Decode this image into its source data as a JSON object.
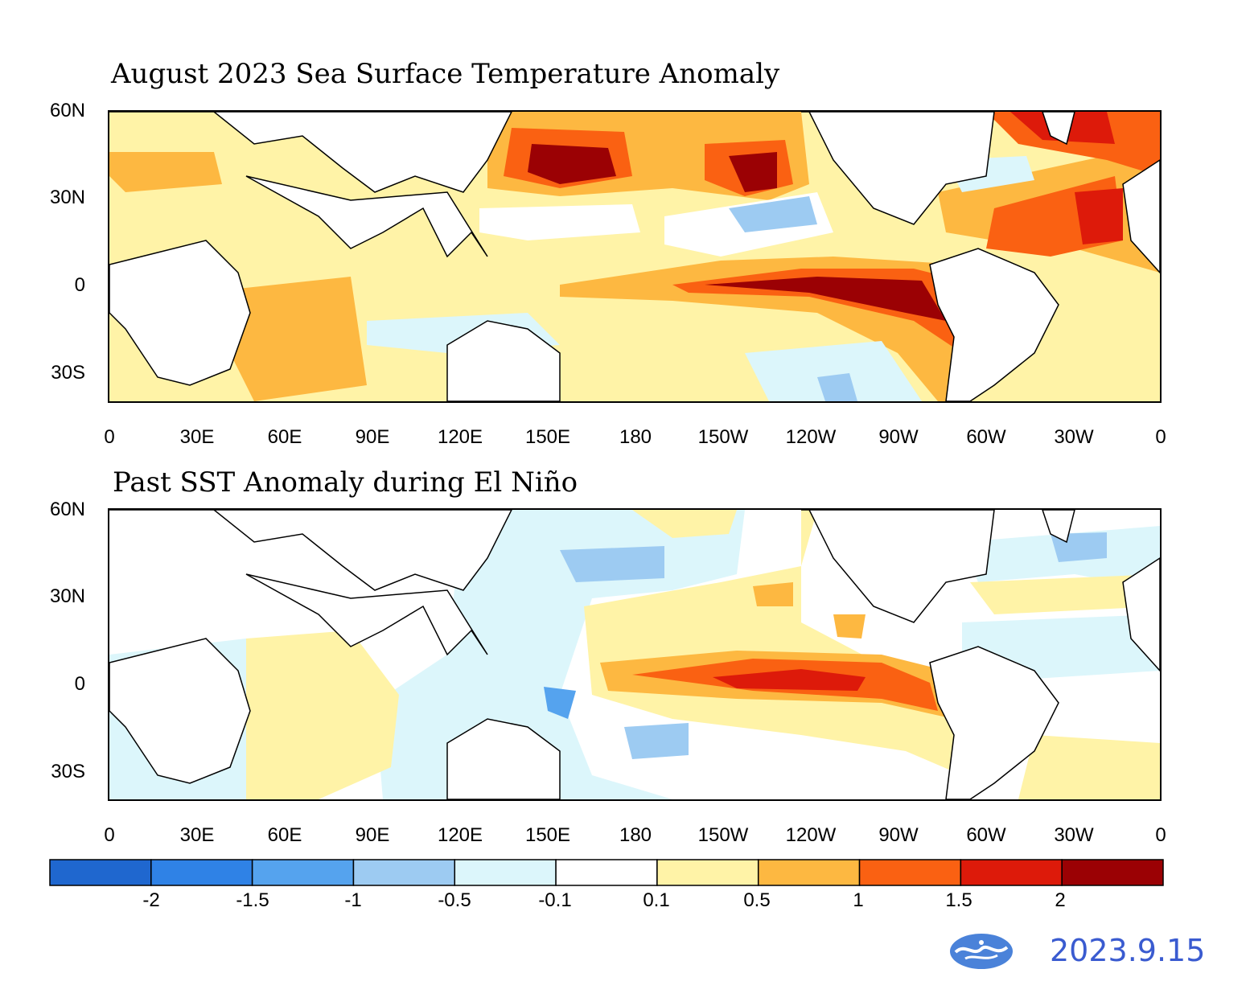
{
  "panels": [
    {
      "title": "August 2023 Sea Surface Temperature Anomaly",
      "lat_labels": [
        "60N",
        "30N",
        "0",
        "30S"
      ],
      "lon_labels": [
        "0",
        "30E",
        "60E",
        "90E",
        "120E",
        "150E",
        "180",
        "150W",
        "120W",
        "90W",
        "60W",
        "30W",
        "0"
      ]
    },
    {
      "title": "Past SST Anomaly during El Niño",
      "lat_labels": [
        "60N",
        "30N",
        "0",
        "30S"
      ],
      "lon_labels": [
        "0",
        "30E",
        "60E",
        "90E",
        "120E",
        "150E",
        "180",
        "150W",
        "120W",
        "90W",
        "60W",
        "30W",
        "0"
      ]
    }
  ],
  "colorbar": {
    "labels": [
      "-2",
      "-1.5",
      "-1",
      "-0.5",
      "-0.1",
      "0.1",
      "0.5",
      "1",
      "1.5",
      "2"
    ],
    "colors": [
      "#1f67cf",
      "#2f82e6",
      "#55a3ee",
      "#9dcbf2",
      "#dcf6fb",
      "#ffffff",
      "#fff3a7",
      "#fdb841",
      "#fa6112",
      "#dd1a0a",
      "#9b0104"
    ]
  },
  "footer": {
    "date": "2023.9.15",
    "logo_icon": "cwa-logo-icon"
  }
}
